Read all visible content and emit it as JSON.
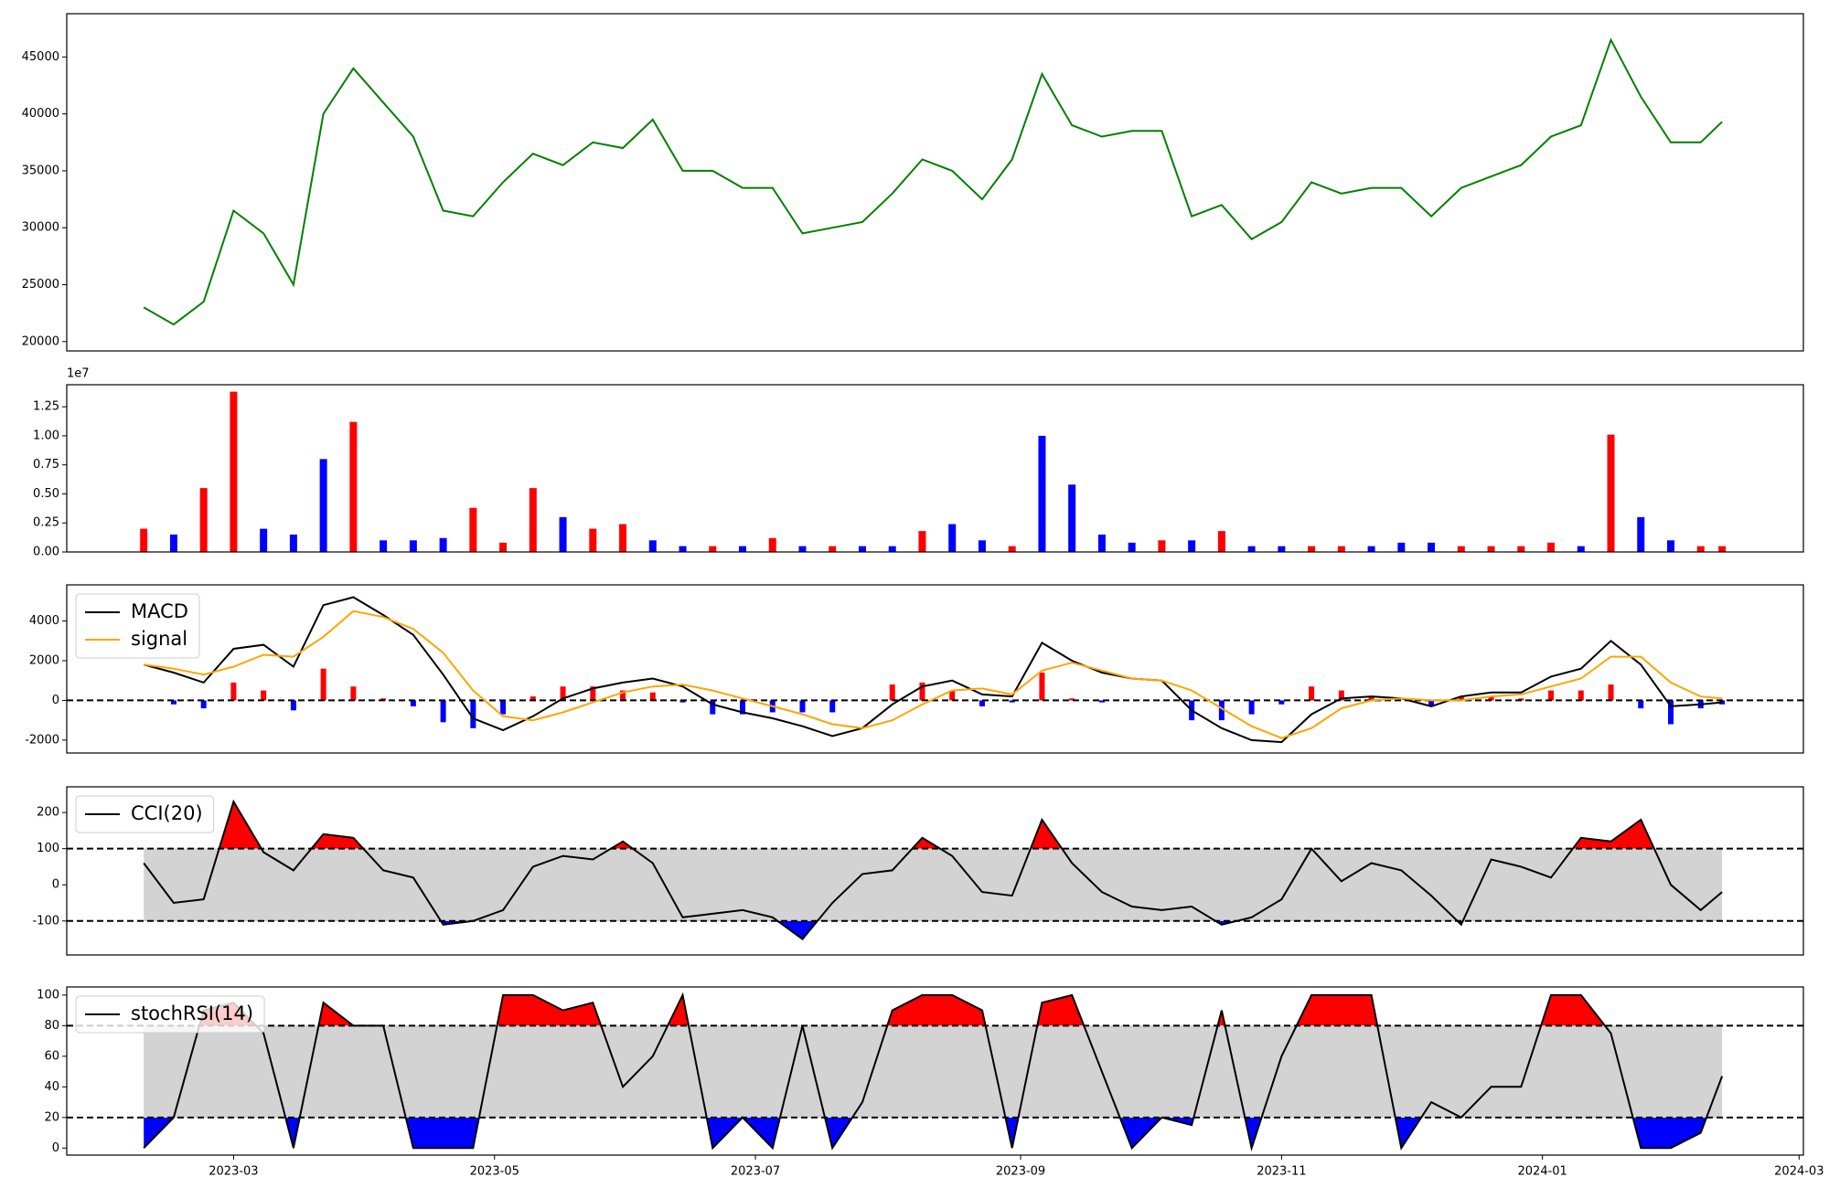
{
  "chart_data": [
    {
      "type": "line",
      "color": "#008000",
      "values": [
        23000,
        21500,
        23500,
        31500,
        29500,
        25000,
        40000,
        44000,
        41000,
        38000,
        31500,
        31000,
        34000,
        36500,
        35500,
        37500,
        37000,
        39500,
        35000,
        35000,
        33500,
        33500,
        29500,
        30000,
        30500,
        33000,
        36000,
        35000,
        32500,
        36000,
        43500,
        39000,
        38000,
        38500,
        38500,
        31000,
        32000,
        29000,
        30500,
        34000,
        33000,
        33500,
        33500,
        31000,
        33500,
        34500,
        35500,
        38000,
        39000,
        46500,
        41500,
        37500,
        37500,
        39300
      ],
      "ylim": [
        19180,
        48800
      ],
      "yticks": [
        20000,
        25000,
        30000,
        35000,
        40000,
        45000
      ]
    },
    {
      "type": "bar",
      "offset_text": "1e7",
      "values": [
        0.2,
        0.15,
        0.55,
        1.38,
        0.2,
        0.15,
        0.8,
        1.12,
        0.1,
        0.1,
        0.12,
        0.38,
        0.08,
        0.55,
        0.3,
        0.2,
        0.24,
        0.1,
        0.05,
        0.05,
        0.05,
        0.12,
        0.05,
        0.05,
        0.05,
        0.05,
        0.18,
        0.24,
        0.1,
        0.05,
        1.0,
        0.58,
        0.15,
        0.08,
        0.1,
        0.1,
        0.18,
        0.05,
        0.05,
        0.05,
        0.05,
        0.05,
        0.08,
        0.08,
        0.05,
        0.05,
        0.05,
        0.08,
        0.05,
        1.01,
        0.3,
        0.1,
        0.05,
        0.05
      ],
      "colors": [
        "red",
        "blue",
        "red",
        "red",
        "blue",
        "blue",
        "blue",
        "red",
        "blue",
        "blue",
        "blue",
        "red",
        "red",
        "red",
        "blue",
        "red",
        "red",
        "blue",
        "blue",
        "red",
        "blue",
        "red",
        "blue",
        "red",
        "blue",
        "blue",
        "red",
        "blue",
        "blue",
        "red",
        "blue",
        "blue",
        "blue",
        "blue",
        "red",
        "blue",
        "red",
        "blue",
        "blue",
        "red",
        "red",
        "blue",
        "blue",
        "blue",
        "red",
        "red",
        "red",
        "red",
        "blue",
        "red",
        "blue",
        "blue",
        "red",
        "red"
      ],
      "ylim": [
        0,
        1.44
      ],
      "yticks": [
        {
          "value": 0,
          "label": "0.00"
        },
        {
          "value": 0.25,
          "label": "0.25"
        },
        {
          "value": 0.5,
          "label": "0.50"
        },
        {
          "value": 0.75,
          "label": "0.75"
        },
        {
          "value": 1,
          "label": "1.00"
        },
        {
          "value": 1.25,
          "label": "1.25"
        }
      ]
    },
    {
      "type": "line",
      "series": [
        {
          "name": "MACD",
          "color": "#000000",
          "values": [
            1800,
            1400,
            900,
            2600,
            2800,
            1700,
            4800,
            5200,
            4300,
            3300,
            1300,
            -900,
            -1500,
            -800,
            100,
            600,
            900,
            1100,
            700,
            -200,
            -600,
            -900,
            -1300,
            -1800,
            -1400,
            -200,
            700,
            1000,
            300,
            200,
            2900,
            2000,
            1400,
            1100,
            1000,
            -500,
            -1400,
            -2000,
            -2100,
            -700,
            100,
            200,
            100,
            -300,
            200,
            400,
            400,
            1200,
            1600,
            3000,
            1800,
            -300,
            -200,
            -100
          ]
        },
        {
          "name": "signal",
          "color": "#ffa500",
          "values": [
            1800,
            1600,
            1300,
            1700,
            2300,
            2200,
            3200,
            4500,
            4200,
            3600,
            2400,
            500,
            -800,
            -1000,
            -600,
            -100,
            400,
            700,
            800,
            500,
            100,
            -300,
            -700,
            -1200,
            -1400,
            -1000,
            -200,
            500,
            600,
            300,
            1500,
            1900,
            1500,
            1100,
            1000,
            500,
            -400,
            -1300,
            -1900,
            -1400,
            -400,
            0,
            100,
            0,
            0,
            200,
            300,
            700,
            1100,
            2200,
            2200,
            900,
            200,
            100
          ]
        }
      ],
      "histogram": {
        "pos_color": "red",
        "neg_color": "blue",
        "values": [
          0,
          -200,
          -400,
          900,
          500,
          -500,
          1600,
          700,
          100,
          -300,
          -1100,
          -1400,
          -700,
          200,
          700,
          700,
          500,
          400,
          -100,
          -700,
          -700,
          -600,
          -600,
          -600,
          0,
          800,
          900,
          500,
          -300,
          -100,
          1400,
          100,
          -100,
          0,
          0,
          -1000,
          -1000,
          -700,
          -200,
          700,
          500,
          200,
          0,
          -300,
          200,
          200,
          100,
          500,
          500,
          800,
          -400,
          -1200,
          -400,
          -200
        ]
      },
      "hlines": [
        0
      ],
      "ylim": [
        -2650,
        5820
      ],
      "yticks": [
        -2000,
        0,
        2000,
        4000
      ],
      "legend": "upper left"
    },
    {
      "type": "line",
      "series": [
        {
          "name": "CCI(20)",
          "color": "#000000",
          "values": [
            60,
            -50,
            -40,
            230,
            90,
            40,
            140,
            130,
            40,
            20,
            -110,
            -100,
            -70,
            50,
            80,
            70,
            120,
            60,
            -90,
            -80,
            -70,
            -90,
            -150,
            -50,
            30,
            40,
            130,
            80,
            -20,
            -30,
            180,
            60,
            -20,
            -60,
            -70,
            -60,
            -110,
            -90,
            -40,
            100,
            10,
            60,
            40,
            -30,
            -110,
            70,
            50,
            20,
            130,
            120,
            180,
            0,
            -70,
            -20
          ]
        }
      ],
      "hlines": [
        -100,
        100
      ],
      "band_color": "#d3d3d3",
      "upper_fill": "red",
      "lower_fill": "blue",
      "ylim": [
        -194,
        271
      ],
      "yticks": [
        -100,
        0,
        100,
        200
      ],
      "legend": "upper left"
    },
    {
      "type": "line",
      "series": [
        {
          "name": "stochRSI(14)",
          "color": "#000000",
          "values": [
            0,
            20,
            90,
            95,
            75,
            0,
            95,
            80,
            80,
            0,
            0,
            0,
            100,
            100,
            90,
            95,
            40,
            60,
            100,
            0,
            20,
            0,
            80,
            0,
            30,
            90,
            100,
            100,
            90,
            0,
            95,
            100,
            50,
            0,
            20,
            15,
            90,
            0,
            60,
            100,
            100,
            100,
            0,
            30,
            20,
            40,
            40,
            100,
            100,
            75,
            0,
            0,
            10,
            47
          ]
        }
      ],
      "hlines": [
        20,
        80
      ],
      "band_color": "#d3d3d3",
      "upper_fill": "red",
      "lower_fill": "blue",
      "ylim": [
        -4.6,
        105.3
      ],
      "yticks": [
        0,
        20,
        40,
        60,
        80,
        100
      ],
      "legend": "upper left",
      "x": [
        "2023-02-08",
        "2023-02-15",
        "2023-02-22",
        "2023-03-01",
        "2023-03-08",
        "2023-03-15",
        "2023-03-22",
        "2023-03-29",
        "2023-04-05",
        "2023-04-12",
        "2023-04-19",
        "2023-04-26",
        "2023-05-03",
        "2023-05-10",
        "2023-05-17",
        "2023-05-24",
        "2023-05-31",
        "2023-06-07",
        "2023-06-14",
        "2023-06-21",
        "2023-06-28",
        "2023-07-05",
        "2023-07-12",
        "2023-07-19",
        "2023-07-26",
        "2023-08-02",
        "2023-08-09",
        "2023-08-16",
        "2023-08-23",
        "2023-08-30",
        "2023-09-06",
        "2023-09-13",
        "2023-09-20",
        "2023-09-27",
        "2023-10-04",
        "2023-10-11",
        "2023-10-18",
        "2023-10-25",
        "2023-11-01",
        "2023-11-08",
        "2023-11-15",
        "2023-11-22",
        "2023-11-29",
        "2023-12-06",
        "2023-12-13",
        "2023-12-20",
        "2023-12-27",
        "2024-01-03",
        "2024-01-10",
        "2024-01-17",
        "2024-01-24",
        "2024-01-31",
        "2024-02-07",
        "2024-02-12"
      ],
      "xlim": [
        "2023-01-21",
        "2024-03-02"
      ],
      "xticks": [
        {
          "value": "2023-03-01",
          "label": "2023-03"
        },
        {
          "value": "2023-05-01",
          "label": "2023-05"
        },
        {
          "value": "2023-07-01",
          "label": "2023-07"
        },
        {
          "value": "2023-09-01",
          "label": "2023-09"
        },
        {
          "value": "2023-11-01",
          "label": "2023-11"
        },
        {
          "value": "2024-01-01",
          "label": "2024-01"
        },
        {
          "value": "2024-03-01",
          "label": "2024-03"
        }
      ]
    }
  ]
}
